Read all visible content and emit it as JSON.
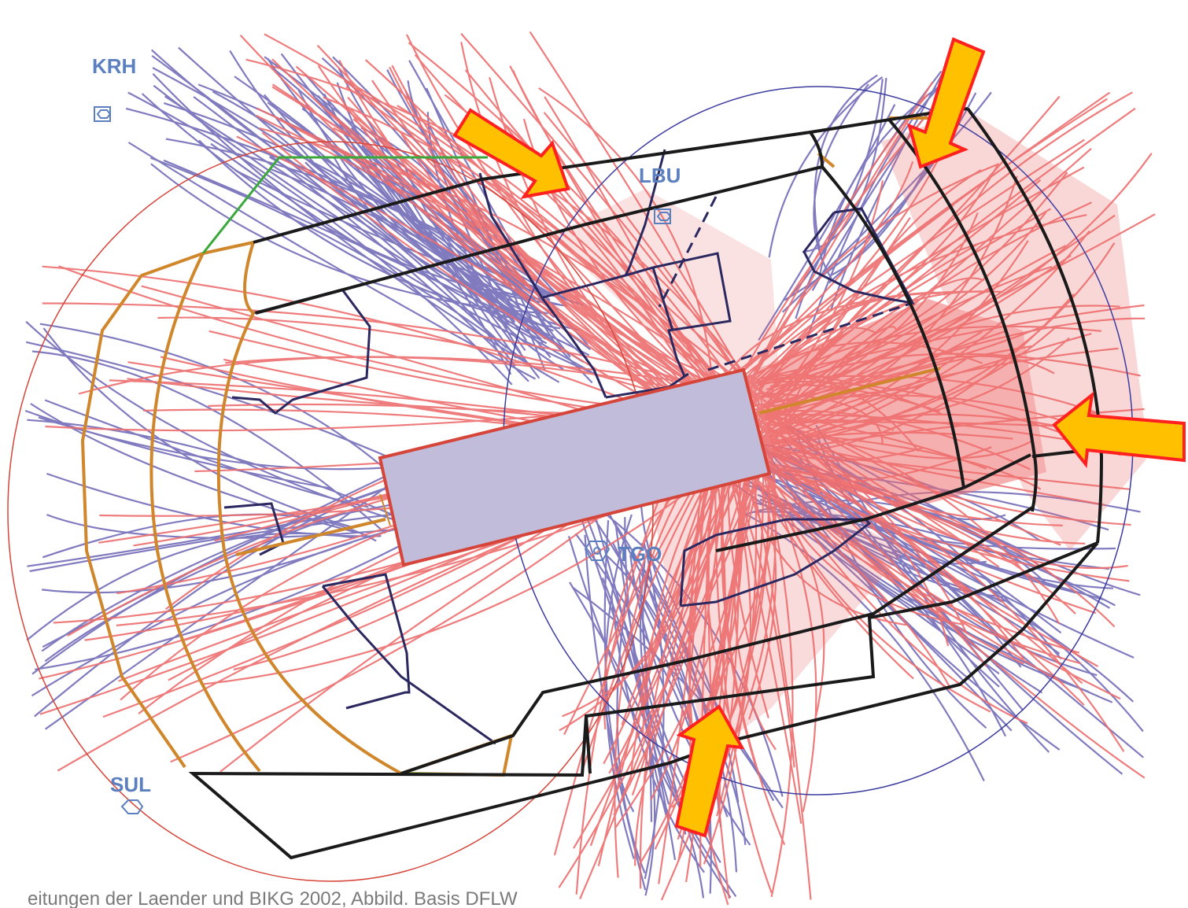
{
  "map": {
    "navaids": [
      {
        "id": "KRH",
        "symbol": "vor-square-icon"
      },
      {
        "id": "LBU",
        "symbol": "vor-square-icon"
      },
      {
        "id": "TGO",
        "symbol": "vortac-icon"
      },
      {
        "id": "SUL",
        "symbol": "vor-hexagon-icon"
      }
    ],
    "caption": "eitungen der Laender und BIKG 2002, Abbild. Basis DFLW",
    "colors": {
      "departures": "#ee6e6e",
      "arrivals": "#6b63b5",
      "sector_lines": "#1a1a1a",
      "transition_lines": "#d0862a",
      "boundary_green": "#3aa83a",
      "runway_fill": "#c0bcd9",
      "runway_border": "#d6453a",
      "arrow_fill": "#ffc000",
      "arrow_border": "#ff2020",
      "airspace_inner": "#2b2860"
    },
    "highlight_arrows": 4
  }
}
